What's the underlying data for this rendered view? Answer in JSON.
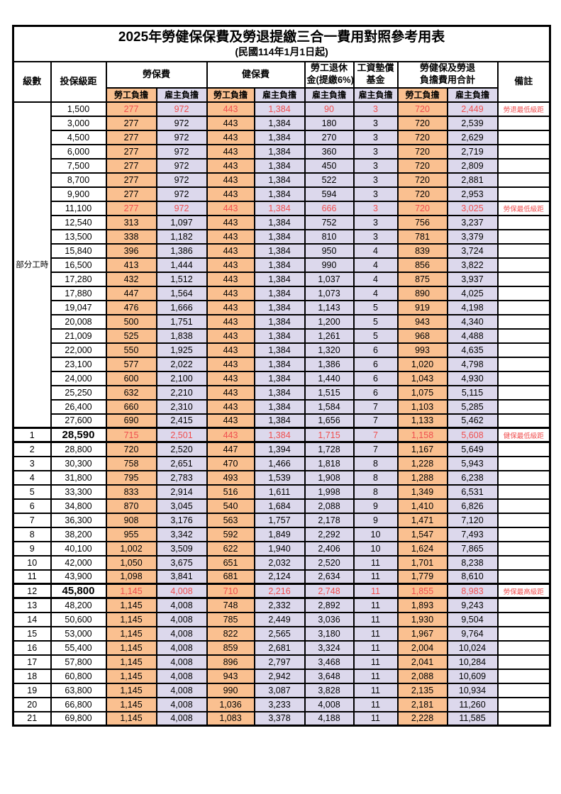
{
  "title": "2025年勞健保保費及勞退提繳三合一費用對照參考用表",
  "subtitle": "(民國114年1月1日起)",
  "accent_colors": {
    "employee_bg": "#FAC090",
    "employer_bg": "#DCD8EC",
    "highlight_red": "#F04F4F"
  },
  "header": {
    "level": "級數",
    "bracket": "投保級距",
    "labor_ins": "勞保費",
    "health_ins": "健保費",
    "pension_line1": "勞工退休",
    "pension_line2": "金(提繳6%)",
    "wage_fund_line1": "工資墊償",
    "wage_fund_line2": "基金",
    "total_line1": "勞健保及勞退",
    "total_line2": "負擔費用合計",
    "remark": "備註",
    "employee": "勞工負擔",
    "employer": "雇主負擔"
  },
  "part_time": {
    "label": "部分工時",
    "span": 23
  },
  "value_classes": [
    "emp",
    "er",
    "emp",
    "er",
    "er",
    "er",
    "emp",
    "er"
  ],
  "rows": [
    {
      "lv": "",
      "br": "1,500",
      "v": [
        "277",
        "972",
        "443",
        "1,384",
        "90",
        "3",
        "720",
        "2,449"
      ],
      "rm": "勞退最低級距",
      "red": true
    },
    {
      "lv": "",
      "br": "3,000",
      "v": [
        "277",
        "972",
        "443",
        "1,384",
        "180",
        "3",
        "720",
        "2,539"
      ],
      "rm": ""
    },
    {
      "lv": "",
      "br": "4,500",
      "v": [
        "277",
        "972",
        "443",
        "1,384",
        "270",
        "3",
        "720",
        "2,629"
      ],
      "rm": ""
    },
    {
      "lv": "",
      "br": "6,000",
      "v": [
        "277",
        "972",
        "443",
        "1,384",
        "360",
        "3",
        "720",
        "2,719"
      ],
      "rm": ""
    },
    {
      "lv": "",
      "br": "7,500",
      "v": [
        "277",
        "972",
        "443",
        "1,384",
        "450",
        "3",
        "720",
        "2,809"
      ],
      "rm": ""
    },
    {
      "lv": "",
      "br": "8,700",
      "v": [
        "277",
        "972",
        "443",
        "1,384",
        "522",
        "3",
        "720",
        "2,881"
      ],
      "rm": ""
    },
    {
      "lv": "",
      "br": "9,900",
      "v": [
        "277",
        "972",
        "443",
        "1,384",
        "594",
        "3",
        "720",
        "2,953"
      ],
      "rm": ""
    },
    {
      "lv": "",
      "br": "11,100",
      "v": [
        "277",
        "972",
        "443",
        "1,384",
        "666",
        "3",
        "720",
        "3,025"
      ],
      "rm": "勞保最低級距",
      "red": true
    },
    {
      "lv": "",
      "br": "12,540",
      "v": [
        "313",
        "1,097",
        "443",
        "1,384",
        "752",
        "3",
        "756",
        "3,237"
      ],
      "rm": ""
    },
    {
      "lv": "",
      "br": "13,500",
      "v": [
        "338",
        "1,182",
        "443",
        "1,384",
        "810",
        "3",
        "781",
        "3,379"
      ],
      "rm": ""
    },
    {
      "lv": "",
      "br": "15,840",
      "v": [
        "396",
        "1,386",
        "443",
        "1,384",
        "950",
        "4",
        "839",
        "3,724"
      ],
      "rm": ""
    },
    {
      "lv": "",
      "br": "16,500",
      "v": [
        "413",
        "1,444",
        "443",
        "1,384",
        "990",
        "4",
        "856",
        "3,822"
      ],
      "rm": ""
    },
    {
      "lv": "",
      "br": "17,280",
      "v": [
        "432",
        "1,512",
        "443",
        "1,384",
        "1,037",
        "4",
        "875",
        "3,937"
      ],
      "rm": ""
    },
    {
      "lv": "",
      "br": "17,880",
      "v": [
        "447",
        "1,564",
        "443",
        "1,384",
        "1,073",
        "4",
        "890",
        "4,025"
      ],
      "rm": ""
    },
    {
      "lv": "",
      "br": "19,047",
      "v": [
        "476",
        "1,666",
        "443",
        "1,384",
        "1,143",
        "5",
        "919",
        "4,198"
      ],
      "rm": ""
    },
    {
      "lv": "",
      "br": "20,008",
      "v": [
        "500",
        "1,751",
        "443",
        "1,384",
        "1,200",
        "5",
        "943",
        "4,340"
      ],
      "rm": ""
    },
    {
      "lv": "",
      "br": "21,009",
      "v": [
        "525",
        "1,838",
        "443",
        "1,384",
        "1,261",
        "5",
        "968",
        "4,488"
      ],
      "rm": ""
    },
    {
      "lv": "",
      "br": "22,000",
      "v": [
        "550",
        "1,925",
        "443",
        "1,384",
        "1,320",
        "6",
        "993",
        "4,635"
      ],
      "rm": ""
    },
    {
      "lv": "",
      "br": "23,100",
      "v": [
        "577",
        "2,022",
        "443",
        "1,384",
        "1,386",
        "6",
        "1,020",
        "4,798"
      ],
      "rm": ""
    },
    {
      "lv": "",
      "br": "24,000",
      "v": [
        "600",
        "2,100",
        "443",
        "1,384",
        "1,440",
        "6",
        "1,043",
        "4,930"
      ],
      "rm": ""
    },
    {
      "lv": "",
      "br": "25,250",
      "v": [
        "632",
        "2,210",
        "443",
        "1,384",
        "1,515",
        "6",
        "1,075",
        "5,115"
      ],
      "rm": ""
    },
    {
      "lv": "",
      "br": "26,400",
      "v": [
        "660",
        "2,310",
        "443",
        "1,384",
        "1,584",
        "7",
        "1,103",
        "5,285"
      ],
      "rm": ""
    },
    {
      "lv": "",
      "br": "27,600",
      "v": [
        "690",
        "2,415",
        "443",
        "1,384",
        "1,656",
        "7",
        "1,133",
        "5,462"
      ],
      "rm": ""
    },
    {
      "lv": "1",
      "br": "28,590",
      "v": [
        "715",
        "2,501",
        "443",
        "1,384",
        "1,715",
        "7",
        "1,158",
        "5,608"
      ],
      "rm": "健保最低級距",
      "red": true,
      "big": true,
      "thick": true
    },
    {
      "lv": "2",
      "br": "28,800",
      "v": [
        "720",
        "2,520",
        "447",
        "1,394",
        "1,728",
        "7",
        "1,167",
        "5,649"
      ],
      "rm": ""
    },
    {
      "lv": "3",
      "br": "30,300",
      "v": [
        "758",
        "2,651",
        "470",
        "1,466",
        "1,818",
        "8",
        "1,228",
        "5,943"
      ],
      "rm": ""
    },
    {
      "lv": "4",
      "br": "31,800",
      "v": [
        "795",
        "2,783",
        "493",
        "1,539",
        "1,908",
        "8",
        "1,288",
        "6,238"
      ],
      "rm": ""
    },
    {
      "lv": "5",
      "br": "33,300",
      "v": [
        "833",
        "2,914",
        "516",
        "1,611",
        "1,998",
        "8",
        "1,349",
        "6,531"
      ],
      "rm": ""
    },
    {
      "lv": "6",
      "br": "34,800",
      "v": [
        "870",
        "3,045",
        "540",
        "1,684",
        "2,088",
        "9",
        "1,410",
        "6,826"
      ],
      "rm": ""
    },
    {
      "lv": "7",
      "br": "36,300",
      "v": [
        "908",
        "3,176",
        "563",
        "1,757",
        "2,178",
        "9",
        "1,471",
        "7,120"
      ],
      "rm": ""
    },
    {
      "lv": "8",
      "br": "38,200",
      "v": [
        "955",
        "3,342",
        "592",
        "1,849",
        "2,292",
        "10",
        "1,547",
        "7,493"
      ],
      "rm": ""
    },
    {
      "lv": "9",
      "br": "40,100",
      "v": [
        "1,002",
        "3,509",
        "622",
        "1,940",
        "2,406",
        "10",
        "1,624",
        "7,865"
      ],
      "rm": ""
    },
    {
      "lv": "10",
      "br": "42,000",
      "v": [
        "1,050",
        "3,675",
        "651",
        "2,032",
        "2,520",
        "11",
        "1,701",
        "8,238"
      ],
      "rm": ""
    },
    {
      "lv": "11",
      "br": "43,900",
      "v": [
        "1,098",
        "3,841",
        "681",
        "2,124",
        "2,634",
        "11",
        "1,779",
        "8,610"
      ],
      "rm": ""
    },
    {
      "lv": "12",
      "br": "45,800",
      "v": [
        "1,145",
        "4,008",
        "710",
        "2,216",
        "2,748",
        "11",
        "1,855",
        "8,983"
      ],
      "rm": "勞保最高級距",
      "red": true,
      "big": true,
      "thick": true
    },
    {
      "lv": "13",
      "br": "48,200",
      "v": [
        "1,145",
        "4,008",
        "748",
        "2,332",
        "2,892",
        "11",
        "1,893",
        "9,243"
      ],
      "rm": ""
    },
    {
      "lv": "14",
      "br": "50,600",
      "v": [
        "1,145",
        "4,008",
        "785",
        "2,449",
        "3,036",
        "11",
        "1,930",
        "9,504"
      ],
      "rm": ""
    },
    {
      "lv": "15",
      "br": "53,000",
      "v": [
        "1,145",
        "4,008",
        "822",
        "2,565",
        "3,180",
        "11",
        "1,967",
        "9,764"
      ],
      "rm": ""
    },
    {
      "lv": "16",
      "br": "55,400",
      "v": [
        "1,145",
        "4,008",
        "859",
        "2,681",
        "3,324",
        "11",
        "2,004",
        "10,024"
      ],
      "rm": ""
    },
    {
      "lv": "17",
      "br": "57,800",
      "v": [
        "1,145",
        "4,008",
        "896",
        "2,797",
        "3,468",
        "11",
        "2,041",
        "10,284"
      ],
      "rm": ""
    },
    {
      "lv": "18",
      "br": "60,800",
      "v": [
        "1,145",
        "4,008",
        "943",
        "2,942",
        "3,648",
        "11",
        "2,088",
        "10,609"
      ],
      "rm": ""
    },
    {
      "lv": "19",
      "br": "63,800",
      "v": [
        "1,145",
        "4,008",
        "990",
        "3,087",
        "3,828",
        "11",
        "2,135",
        "10,934"
      ],
      "rm": ""
    },
    {
      "lv": "20",
      "br": "66,800",
      "v": [
        "1,145",
        "4,008",
        "1,036",
        "3,233",
        "4,008",
        "11",
        "2,181",
        "11,260"
      ],
      "rm": ""
    },
    {
      "lv": "21",
      "br": "69,800",
      "v": [
        "1,145",
        "4,008",
        "1,083",
        "3,378",
        "4,188",
        "11",
        "2,228",
        "11,585"
      ],
      "rm": ""
    }
  ]
}
